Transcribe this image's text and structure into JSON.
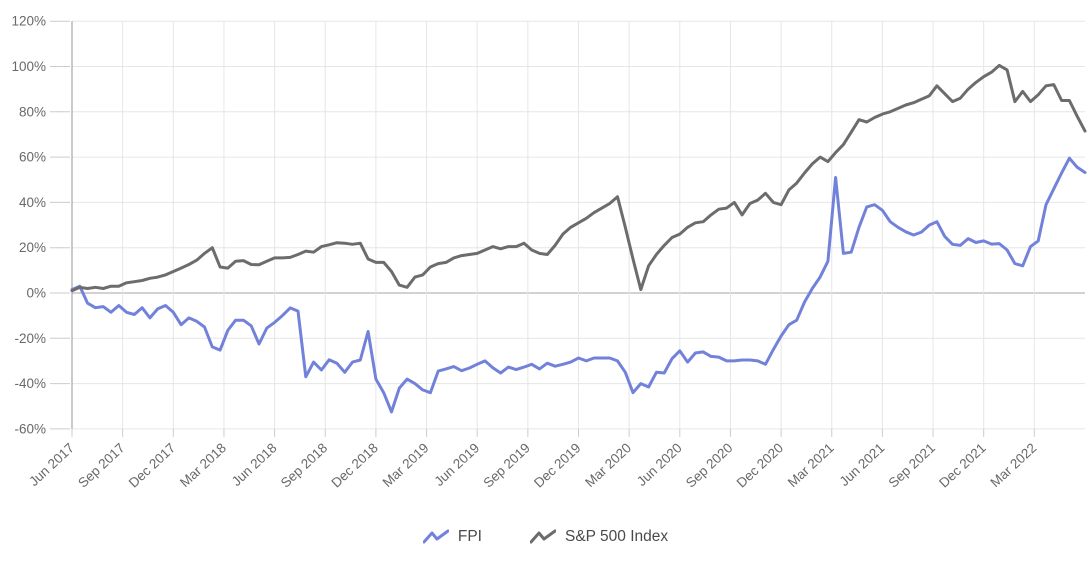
{
  "chart_data": {
    "type": "line",
    "title": "",
    "x_tick_labels": [
      "Jun 2017",
      "Sep 2017",
      "Dec 2017",
      "Mar 2018",
      "Jun 2018",
      "Sep 2018",
      "Dec 2018",
      "Mar 2019",
      "Jun 2019",
      "Sep 2019",
      "Dec 2019",
      "Mar 2020",
      "Jun 2020",
      "Sep 2020",
      "Dec 2020",
      "Mar 2021",
      "Jun 2021",
      "Sep 2021",
      "Dec 2021",
      "Mar 2022"
    ],
    "y_tick_labels": [
      "120%",
      "100%",
      "80%",
      "60%",
      "40%",
      "20%",
      "0%",
      "-20%",
      "-40%",
      "-60%"
    ],
    "y_axis": {
      "min": -60,
      "max": 120,
      "step": 20,
      "unit": "%"
    },
    "x_axis": {
      "start": "Jun 2017",
      "end": "May 2022",
      "tick_interval": "quarterly",
      "points_sampling": "biweekly"
    },
    "grid": "on",
    "legend_position": "bottom-center",
    "colors": {
      "fpi": "#7282DA",
      "sp500": "#6C6C6C",
      "gridline": "#E6E6E6",
      "zero_line": "#A6A6A6",
      "axis_line": "#A6A6A6",
      "tick": "#CCCCCC",
      "axis_label": "#696969",
      "legend_text": "#4A4A4A"
    },
    "series": [
      {
        "name": "FPI",
        "color": "#7282DA",
        "values": [
          1.5,
          3,
          -4.5,
          -6.5,
          -6,
          -8.5,
          -5.5,
          -8.5,
          -9.5,
          -6.5,
          -11,
          -7,
          -5.5,
          -8.5,
          -14,
          -11,
          -12.5,
          -15,
          -23.8,
          -25.2,
          -16.5,
          -12,
          -12,
          -14.5,
          -22.5,
          -15.5,
          -13,
          -10,
          -6.6,
          -8,
          -37,
          -30.5,
          -34,
          -29.5,
          -31,
          -35,
          -30.5,
          -29.6,
          -17,
          -38,
          -44,
          -52.5,
          -42,
          -38,
          -40,
          -42.8,
          -44,
          -34.5,
          -33.5,
          -32.5,
          -34.3,
          -33.1,
          -31.5,
          -30,
          -33,
          -35.3,
          -32.7,
          -33.8,
          -32.7,
          -31.5,
          -33.5,
          -31,
          -32.3,
          -31.5,
          -30.5,
          -28.7,
          -30,
          -28.7,
          -28.7,
          -28.7,
          -30,
          -35,
          -44,
          -40,
          -41.5,
          -35,
          -35.3,
          -29,
          -25.5,
          -30.5,
          -26.5,
          -26,
          -28,
          -28.3,
          -30,
          -30,
          -29.6,
          -29.6,
          -30,
          -31.5,
          -25,
          -19,
          -14,
          -12,
          -4,
          2,
          7,
          14,
          51,
          17.5,
          18,
          29,
          38,
          39,
          36.5,
          31.5,
          29,
          27,
          25.6,
          26.9,
          30,
          31.5,
          25,
          21.5,
          21,
          24,
          22.3,
          23,
          21.6,
          21.8,
          19,
          13,
          12,
          20.5,
          23,
          39,
          46,
          53,
          59.5,
          55.5,
          53.2
        ]
      },
      {
        "name": "S&P 500 Index",
        "color": "#6C6C6C",
        "values": [
          1,
          2.5,
          2,
          2.5,
          2,
          3,
          3,
          4.5,
          5,
          5.5,
          6.5,
          7,
          8,
          9.5,
          11,
          12.6,
          14.5,
          17.5,
          20,
          11.5,
          11,
          14,
          14.3,
          12.6,
          12.5,
          14,
          15.5,
          15.5,
          15.7,
          17,
          18.5,
          18,
          20.5,
          21.3,
          22.2,
          22,
          21.5,
          22,
          15,
          13.5,
          13.5,
          9.5,
          3.5,
          2.5,
          7,
          8,
          11.5,
          13,
          13.5,
          15.5,
          16.5,
          17,
          17.5,
          19,
          20.5,
          19.5,
          20.5,
          20.5,
          22,
          19,
          17.5,
          17,
          21,
          26,
          29,
          31,
          33,
          35.5,
          37.5,
          39.5,
          42.5,
          29,
          15,
          1.5,
          12,
          17,
          21,
          24.5,
          26,
          29,
          31,
          31.5,
          34.5,
          37,
          37.5,
          40,
          34.5,
          39.5,
          41,
          44,
          40,
          39,
          45.5,
          48.5,
          53,
          57,
          60,
          58,
          62,
          65.5,
          71,
          76.5,
          75.5,
          77.5,
          79,
          80,
          81.5,
          83,
          84,
          85.5,
          87,
          91.5,
          88,
          84.5,
          86,
          90,
          93,
          95.5,
          97.5,
          100.5,
          98.5,
          84.5,
          89,
          84.5,
          87.5,
          91.5,
          92,
          85,
          85,
          78,
          71.5
        ]
      }
    ]
  }
}
